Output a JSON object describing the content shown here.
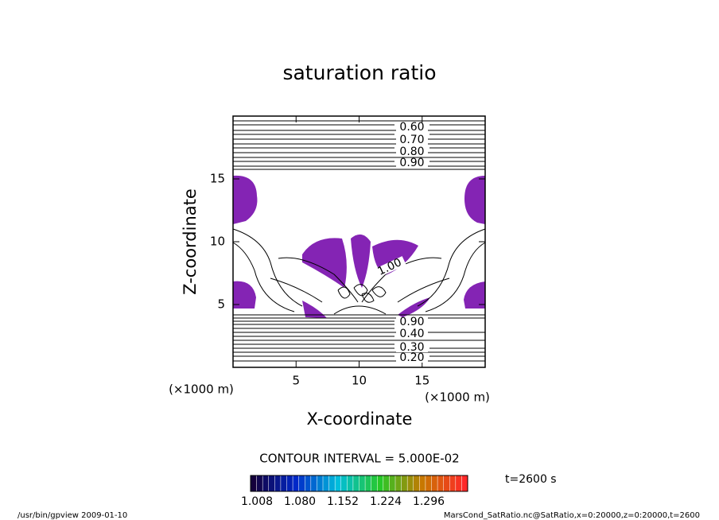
{
  "chart_data": {
    "type": "contour",
    "title": "saturation ratio",
    "x_label": "X-coordinate",
    "y_label": "Z-coordinate",
    "x_unit": "(×1000 m)",
    "y_unit": "(×1000 m)",
    "xlim": [
      0,
      20
    ],
    "ylim": [
      0,
      20
    ],
    "xticks": [
      5,
      10,
      15
    ],
    "yticks": [
      5,
      10,
      15
    ],
    "fill_color": "#8424b4",
    "contour_labels": [
      "0.60",
      "0.70",
      "0.80",
      "0.90",
      "1.00",
      "0.90",
      "0.40",
      "0.30",
      "0.20"
    ],
    "contour_interval": "CONTOUR INTERVAL = 5.000E-02",
    "colorbar_ticks": [
      {
        "value": 1.008,
        "label": "1.008"
      },
      {
        "value": 1.08,
        "label": "1.080"
      },
      {
        "value": 1.152,
        "label": "1.152"
      },
      {
        "value": 1.224,
        "label": "1.224"
      },
      {
        "value": 1.296,
        "label": "1.296"
      }
    ],
    "time_label": "t=2600 s",
    "footer_left": "/usr/bin/gpview  2009-01-10",
    "footer_right": "MarsCond_SatRatio.nc@SatRatio,x=0:20000,z=0:20000,t=2600"
  }
}
